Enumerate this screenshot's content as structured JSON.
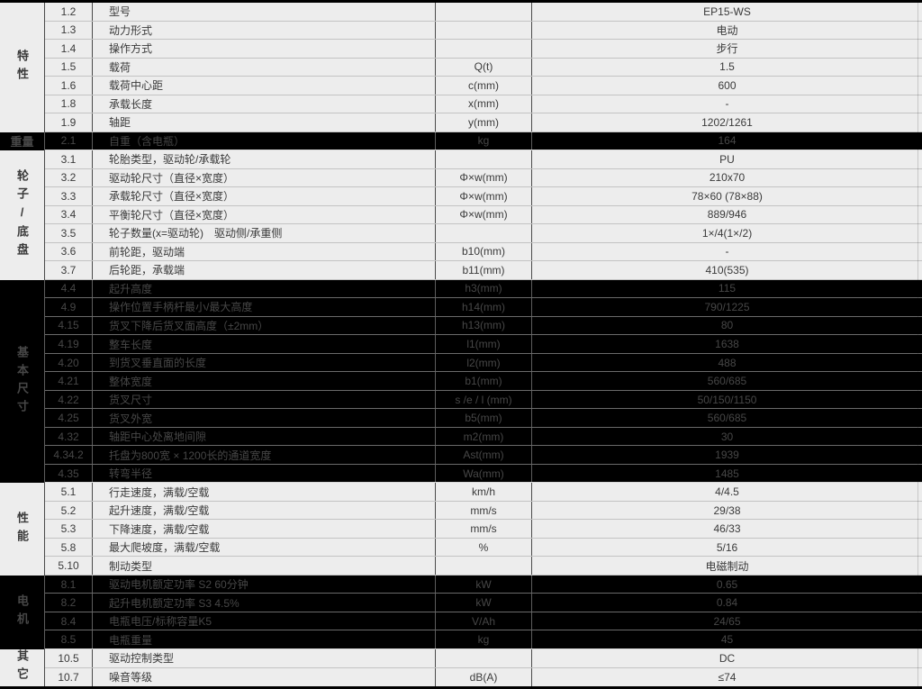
{
  "table": {
    "colors": {
      "light_section_bg": "#ededed",
      "light_section_text": "#3a3a3a",
      "dark_section_bg": "#000000",
      "dark_section_text": "#474747"
    },
    "sections": [
      {
        "category": "特性",
        "theme": "light",
        "rows": [
          {
            "num": "1.2",
            "label": "型号",
            "unit": "",
            "value": "EP15-WS"
          },
          {
            "num": "1.3",
            "label": "动力形式",
            "unit": "",
            "value": "电动"
          },
          {
            "num": "1.4",
            "label": "操作方式",
            "unit": "",
            "value": "步行"
          },
          {
            "num": "1.5",
            "label": "载荷",
            "unit": "Q(t)",
            "value": "1.5"
          },
          {
            "num": "1.6",
            "label": "载荷中心距",
            "unit": "c(mm)",
            "value": "600"
          },
          {
            "num": "1.8",
            "label": "承载长度",
            "unit": "x(mm)",
            "value": "-"
          },
          {
            "num": "1.9",
            "label": "轴距",
            "unit": "y(mm)",
            "value": "1202/1261"
          }
        ]
      },
      {
        "category": "重量",
        "theme": "dark",
        "rows": [
          {
            "num": "2.1",
            "label": "自重（含电瓶）",
            "unit": "kg",
            "value": "164"
          }
        ]
      },
      {
        "category": "轮子/底盘",
        "theme": "light",
        "rows": [
          {
            "num": "3.1",
            "label": "轮胎类型，驱动轮/承载轮",
            "unit": "",
            "value": "PU"
          },
          {
            "num": "3.2",
            "label": "驱动轮尺寸（直径×宽度）",
            "unit": "Φ×w(mm)",
            "value": "210x70"
          },
          {
            "num": "3.3",
            "label": "承载轮尺寸（直径×宽度）",
            "unit": "Φ×w(mm)",
            "value": "78×60 (78×88)"
          },
          {
            "num": "3.4",
            "label": "平衡轮尺寸（直径×宽度）",
            "unit": "Φ×w(mm)",
            "value": "889/946"
          },
          {
            "num": "3.5",
            "label": "轮子数量(x=驱动轮)　驱动侧/承重侧",
            "unit": "",
            "value": "1×/4(1×/2)"
          },
          {
            "num": "3.6",
            "label": "前轮距，驱动端",
            "unit": "b10(mm)",
            "value": "-"
          },
          {
            "num": "3.7",
            "label": "后轮距，承载端",
            "unit": "b11(mm)",
            "value": "410(535)"
          }
        ]
      },
      {
        "category": "基本尺寸",
        "theme": "dark",
        "rows": [
          {
            "num": "4.4",
            "label": "起升高度",
            "unit": "h3(mm)",
            "value": "115"
          },
          {
            "num": "4.9",
            "label": "操作位置手柄杆最小/最大高度",
            "unit": "h14(mm)",
            "value": "790/1225"
          },
          {
            "num": "4.15",
            "label": "货叉下降后货叉面高度（±2mm）",
            "unit": "h13(mm)",
            "value": "80"
          },
          {
            "num": "4.19",
            "label": "整车长度",
            "unit": "l1(mm)",
            "value": "1638"
          },
          {
            "num": "4.20",
            "label": "到货叉垂直面的长度",
            "unit": "l2(mm)",
            "value": "488"
          },
          {
            "num": "4.21",
            "label": "整体宽度",
            "unit": "b1(mm)",
            "value": "560/685"
          },
          {
            "num": "4.22",
            "label": "货叉尺寸",
            "unit": "s /e / l (mm)",
            "value": "50/150/1150"
          },
          {
            "num": "4.25",
            "label": "货叉外宽",
            "unit": "b5(mm)",
            "value": "560/685"
          },
          {
            "num": "4.32",
            "label": "轴距中心处离地间隙",
            "unit": "m2(mm)",
            "value": "30"
          },
          {
            "num": "4.34.2",
            "label": "托盘为800宽 × 1200长的通道宽度",
            "unit": "Ast(mm)",
            "value": "1939"
          },
          {
            "num": "4.35",
            "label": "转弯半径",
            "unit": "Wa(mm)",
            "value": "1485"
          }
        ]
      },
      {
        "category": "性能",
        "theme": "light",
        "rows": [
          {
            "num": "5.1",
            "label": "行走速度，满载/空载",
            "unit": "km/h",
            "value": "4/4.5"
          },
          {
            "num": "5.2",
            "label": "起升速度，满载/空载",
            "unit": "mm/s",
            "value": "29/38"
          },
          {
            "num": "5.3",
            "label": "下降速度，满载/空载",
            "unit": "mm/s",
            "value": "46/33"
          },
          {
            "num": "5.8",
            "label": "最大爬坡度，满载/空载",
            "unit": "%",
            "value": "5/16"
          },
          {
            "num": "5.10",
            "label": "制动类型",
            "unit": "",
            "value": "电磁制动"
          }
        ]
      },
      {
        "category": "电机",
        "theme": "dark",
        "rows": [
          {
            "num": "8.1",
            "label": "驱动电机额定功率 S2 60分钟",
            "unit": "kW",
            "value": "0.65"
          },
          {
            "num": "8.2",
            "label": "起升电机额定功率 S3 4.5%",
            "unit": "kW",
            "value": "0.84"
          },
          {
            "num": "8.4",
            "label": "电瓶电压/标称容量K5",
            "unit": "V/Ah",
            "value": "24/65"
          },
          {
            "num": "8.5",
            "label": "电瓶重量",
            "unit": "kg",
            "value": "45"
          }
        ]
      },
      {
        "category": "其它",
        "theme": "light",
        "rows": [
          {
            "num": "10.5",
            "label": "驱动控制类型",
            "unit": "",
            "value": "DC"
          },
          {
            "num": "10.7",
            "label": "噪音等级",
            "unit": "dB(A)",
            "value": "≤74"
          }
        ]
      }
    ]
  }
}
